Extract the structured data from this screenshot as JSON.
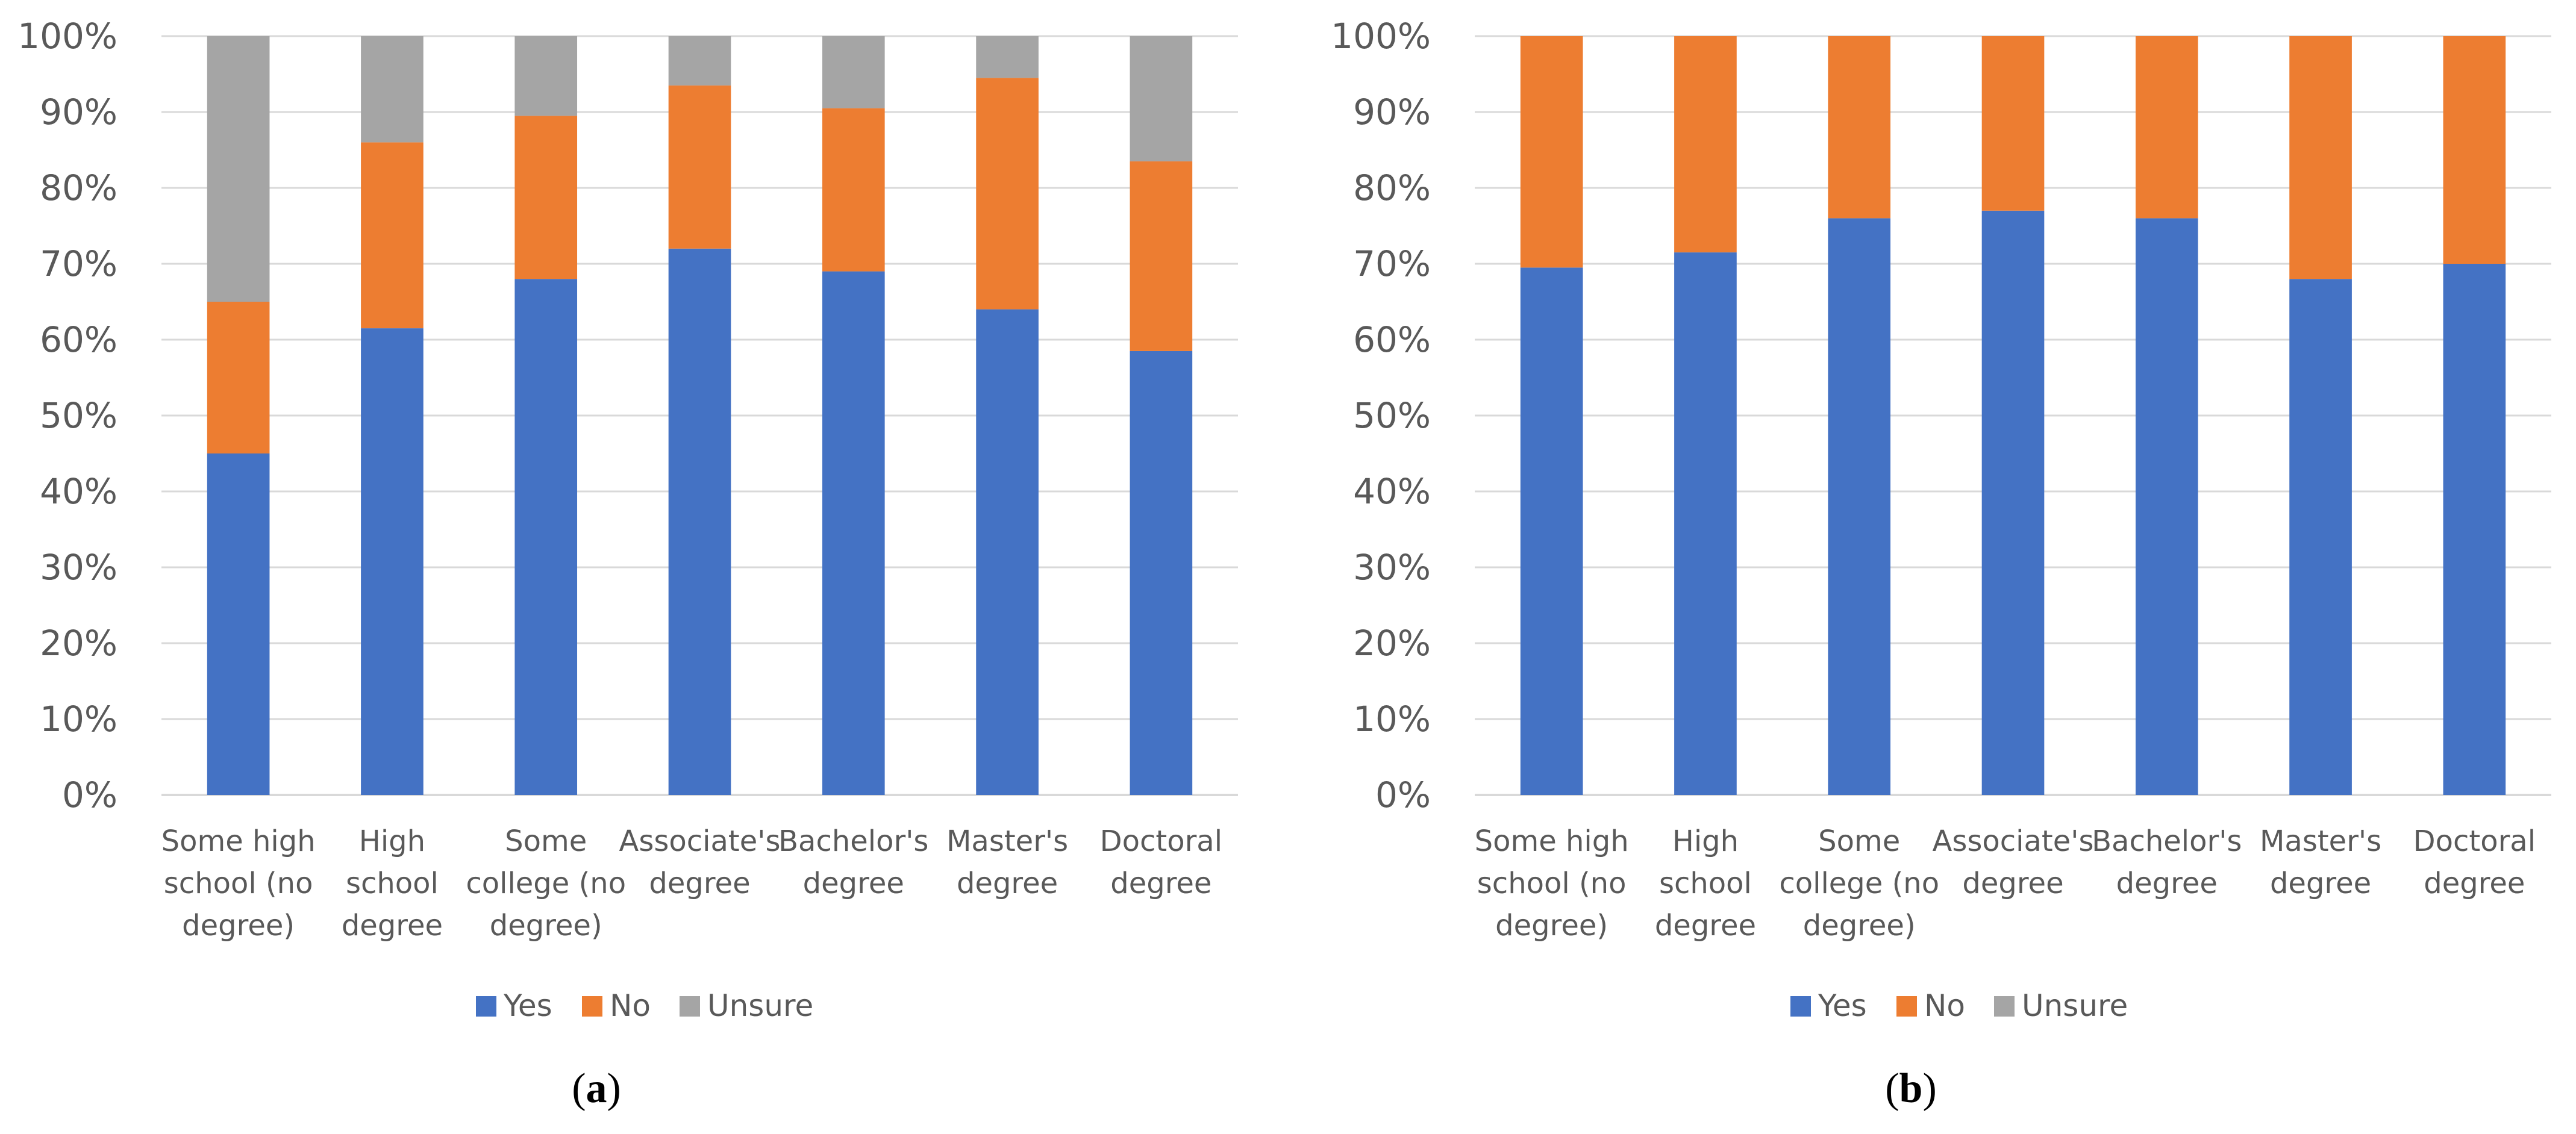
{
  "colors": {
    "yes": "#4472C4",
    "no": "#ED7D31",
    "unsure": "#A5A5A5",
    "grid": "#D9D9D9",
    "text": "#595959"
  },
  "chart_data": [
    {
      "type": "bar",
      "stacked": true,
      "panel_label": "a",
      "title": "",
      "xlabel": "",
      "ylabel": "",
      "ylim": [
        0,
        100
      ],
      "y_ticks": [
        "0%",
        "10%",
        "20%",
        "30%",
        "40%",
        "50%",
        "60%",
        "70%",
        "80%",
        "90%",
        "100%"
      ],
      "grid": true,
      "legend_position": "bottom",
      "categories": [
        "Some high school (no degree)",
        "High school degree",
        "Some college (no degree)",
        "Associate's degree",
        "Bachelor's degree",
        "Master's degree",
        "Doctoral degree"
      ],
      "category_lines": [
        [
          "Some high",
          "school (no",
          "degree)"
        ],
        [
          "High",
          "school",
          "degree"
        ],
        [
          "Some",
          "college (no",
          "degree)"
        ],
        [
          "Associate's",
          "degree"
        ],
        [
          "Bachelor's",
          "degree"
        ],
        [
          "Master's",
          "degree"
        ],
        [
          "Doctoral",
          "degree"
        ]
      ],
      "series": [
        {
          "name": "Yes",
          "color_key": "yes",
          "values": [
            45,
            61.5,
            68,
            72,
            69,
            64,
            58.5
          ]
        },
        {
          "name": "No",
          "color_key": "no",
          "values": [
            20,
            24.5,
            21.5,
            21.5,
            21.5,
            30.5,
            25
          ]
        },
        {
          "name": "Unsure",
          "color_key": "unsure",
          "values": [
            35,
            14,
            10.5,
            6.5,
            9.5,
            5.5,
            16.5
          ]
        }
      ]
    },
    {
      "type": "bar",
      "stacked": true,
      "panel_label": "b",
      "title": "",
      "xlabel": "",
      "ylabel": "",
      "ylim": [
        0,
        100
      ],
      "y_ticks": [
        "0%",
        "10%",
        "20%",
        "30%",
        "40%",
        "50%",
        "60%",
        "70%",
        "80%",
        "90%",
        "100%"
      ],
      "grid": true,
      "legend_position": "bottom",
      "categories": [
        "Some high school (no degree)",
        "High school degree",
        "Some college (no degree)",
        "Associate's degree",
        "Bachelor's degree",
        "Master's degree",
        "Doctoral degree"
      ],
      "category_lines": [
        [
          "Some high",
          "school (no",
          "degree)"
        ],
        [
          "High",
          "school",
          "degree"
        ],
        [
          "Some",
          "college (no",
          "degree)"
        ],
        [
          "Associate's",
          "degree"
        ],
        [
          "Bachelor's",
          "degree"
        ],
        [
          "Master's",
          "degree"
        ],
        [
          "Doctoral",
          "degree"
        ]
      ],
      "series": [
        {
          "name": "Yes",
          "color_key": "yes",
          "values": [
            69.5,
            71.5,
            76,
            77,
            76,
            68,
            70
          ]
        },
        {
          "name": "No",
          "color_key": "no",
          "values": [
            30.5,
            28.5,
            24,
            23,
            24,
            32,
            30
          ]
        },
        {
          "name": "Unsure",
          "color_key": "unsure",
          "values": [
            0,
            0,
            0,
            0,
            0,
            0,
            0
          ]
        }
      ]
    }
  ]
}
